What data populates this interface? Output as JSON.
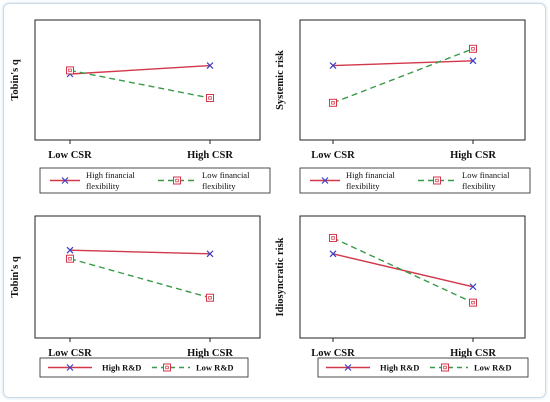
{
  "colors": {
    "high": "#d2374a",
    "low": "#3b9a48",
    "high_marker": "#3840c8",
    "low_marker": "#d2374a",
    "axis": "#222222"
  },
  "chart_data": [
    {
      "type": "line",
      "ylabel": "Tobin's q",
      "categories": [
        "Low CSR",
        "High CSR"
      ],
      "ylim": [
        0,
        1
      ],
      "series": [
        {
          "name": "High financial flexibility",
          "style": "solid",
          "marker": "x",
          "values": [
            0.55,
            0.62
          ]
        },
        {
          "name": "Low financial flexibility",
          "style": "dashed",
          "marker": "square",
          "values": [
            0.58,
            0.35
          ]
        }
      ],
      "legend": {
        "labels": [
          "High financial",
          "flexibility",
          "Low financial",
          "flexibility"
        ]
      }
    },
    {
      "type": "line",
      "ylabel": "Systemic risk",
      "categories": [
        "Low CSR",
        "High CSR"
      ],
      "ylim": [
        0,
        1
      ],
      "series": [
        {
          "name": "High financial flexibility",
          "style": "solid",
          "marker": "x",
          "values": [
            0.62,
            0.66
          ]
        },
        {
          "name": "Low financial flexibility",
          "style": "dashed",
          "marker": "square",
          "values": [
            0.31,
            0.76
          ]
        }
      ],
      "legend": {
        "labels": [
          "High financial",
          "flexibility",
          "Low financial",
          "flexibility"
        ]
      }
    },
    {
      "type": "line",
      "ylabel": "Tobin's q",
      "categories": [
        "Low CSR",
        "High CSR"
      ],
      "ylim": [
        0,
        1
      ],
      "series": [
        {
          "name": "High R&D",
          "style": "solid",
          "marker": "x",
          "values": [
            0.72,
            0.69
          ]
        },
        {
          "name": "Low R&D",
          "style": "dashed",
          "marker": "square",
          "values": [
            0.65,
            0.33
          ]
        }
      ],
      "legend": {
        "labels": [
          "High R&D",
          "Low R&D"
        ]
      }
    },
    {
      "type": "line",
      "ylabel": "Idiosyncratic risk",
      "categories": [
        "Low CSR",
        "High CSR"
      ],
      "ylim": [
        0,
        1
      ],
      "series": [
        {
          "name": "High R&D",
          "style": "solid",
          "marker": "x",
          "values": [
            0.69,
            0.42
          ]
        },
        {
          "name": "Low R&D",
          "style": "dashed",
          "marker": "square",
          "values": [
            0.82,
            0.29
          ]
        }
      ],
      "legend": {
        "labels": [
          "High R&D",
          "Low R&D"
        ]
      }
    }
  ]
}
